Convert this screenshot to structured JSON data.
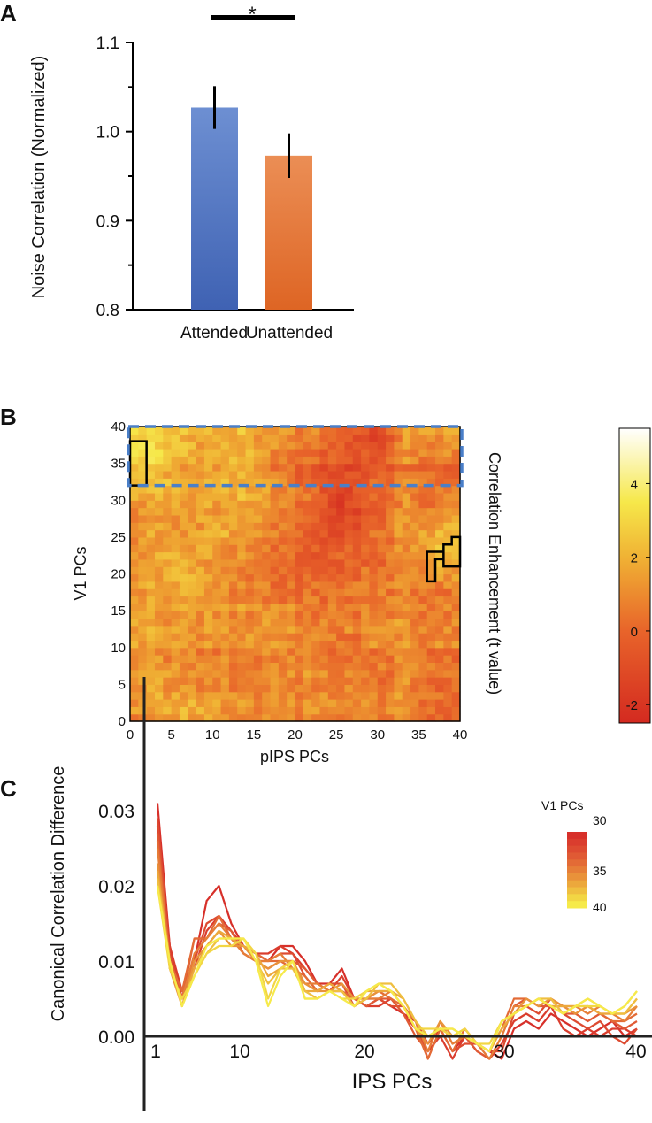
{
  "panel_labels": [
    "A",
    "B",
    "C"
  ],
  "chart_data": [
    {
      "type": "bar",
      "title": "",
      "ylabel": "Noise Correlation (Normalized)",
      "xlabel": "",
      "categories": [
        "Attended",
        "Unattended"
      ],
      "values": [
        1.027,
        0.973
      ],
      "errors": [
        0.024,
        0.025
      ],
      "colors": [
        "#5b7cc4",
        "#e5773a"
      ],
      "ylim": [
        0.8,
        1.1
      ],
      "yticks": [
        "0.8",
        "0.9",
        "1.0",
        "1.1"
      ],
      "significance": {
        "between": [
          "Attended",
          "Unattended"
        ],
        "label": "*"
      }
    },
    {
      "type": "heatmap",
      "xlabel": "pIPS PCs",
      "ylabel": "V1 PCs",
      "xticks": [
        "0",
        "5",
        "10",
        "15",
        "20",
        "25",
        "30",
        "35",
        "40"
      ],
      "yticks": [
        "0",
        "5",
        "10",
        "15",
        "20",
        "25",
        "30",
        "35",
        "40"
      ],
      "xlim": [
        0,
        40
      ],
      "ylim": [
        0,
        40
      ],
      "colorbar": {
        "label": "Correlation Enhancement (t value)",
        "ticks": [
          "4",
          "2",
          "0",
          "-2"
        ],
        "range": [
          -2.5,
          5.5
        ]
      },
      "block_size": 4,
      "coarse_t_values_bottom_to_top": [
        [
          1.5,
          2,
          1.5,
          1,
          1,
          1,
          1,
          1,
          1,
          0
        ],
        [
          1.5,
          1,
          1,
          0.5,
          1,
          1,
          1,
          0.5,
          1,
          0
        ],
        [
          1.5,
          1,
          1,
          1.5,
          1,
          1,
          0.5,
          1,
          1,
          0.5
        ],
        [
          1.5,
          1,
          1,
          1,
          1,
          0.5,
          0.5,
          1,
          1,
          0.5
        ],
        [
          1.5,
          2,
          1.5,
          1,
          0.5,
          0.5,
          0.5,
          1,
          1,
          0.5
        ],
        [
          1.5,
          2,
          1.5,
          1,
          0,
          -0.5,
          0,
          0.5,
          1,
          2.5
        ],
        [
          1.5,
          1,
          2,
          1.5,
          1,
          -0.5,
          -1,
          0.5,
          1.5,
          2
        ],
        [
          1.5,
          1.5,
          1.5,
          2,
          1,
          0,
          -1.5,
          0,
          1,
          0.5
        ],
        [
          3,
          1.5,
          1.5,
          2,
          0.5,
          -0.5,
          -1,
          0,
          0.5,
          0
        ],
        [
          3,
          2,
          1.5,
          2,
          1,
          0.5,
          -0.5,
          -1,
          1.5,
          1
        ]
      ],
      "significant_clusters": [
        [
          [
            0,
            32
          ],
          [
            2,
            32
          ],
          [
            2,
            38
          ],
          [
            0,
            38
          ]
        ],
        [
          [
            36,
            19
          ],
          [
            37,
            19
          ],
          [
            37,
            22
          ],
          [
            38,
            22
          ],
          [
            38,
            24
          ],
          [
            39,
            24
          ],
          [
            39,
            25
          ],
          [
            40,
            25
          ],
          [
            40,
            21
          ],
          [
            38,
            21
          ],
          [
            38,
            23
          ],
          [
            36,
            23
          ]
        ]
      ],
      "highlight_region": {
        "v1_range": [
          32,
          40
        ],
        "pips_range": [
          0,
          40
        ],
        "color": "#4a7fc8"
      }
    },
    {
      "type": "line",
      "xlabel": "IPS PCs",
      "ylabel": "Canonical Correlation Difference",
      "xticks": [
        "1",
        "10",
        "20",
        "30",
        "40"
      ],
      "yticks": [
        "0.00",
        "0.01",
        "0.02",
        "0.03"
      ],
      "xlim": [
        1,
        40
      ],
      "ylim": [
        -0.011,
        0.047
      ],
      "legend": {
        "title": "V1 PCs",
        "ticks": [
          "30",
          "35",
          "40"
        ],
        "placement": "top-right"
      },
      "series": [
        {
          "name": "30",
          "color": "#d7302a",
          "values": [
            0.031,
            0.012,
            0.005,
            0.01,
            0.018,
            0.02,
            0.015,
            0.012,
            0.011,
            0.01,
            0.012,
            0.012,
            0.01,
            0.007,
            0.007,
            0.009,
            0.005,
            0.004,
            0.005,
            0.004,
            0.003,
            0.002,
            -0.001,
            0.001,
            -0.002,
            0.0,
            -0.001,
            -0.002,
            -0.003,
            0.001,
            0.002,
            0.001,
            0.003,
            0.002,
            0.001,
            0.0,
            0.001,
            0.002,
            0.0,
            0.001
          ]
        },
        {
          "name": "31",
          "color": "#da3d2e",
          "values": [
            0.028,
            0.012,
            0.006,
            0.009,
            0.014,
            0.016,
            0.014,
            0.012,
            0.011,
            0.011,
            0.012,
            0.011,
            0.009,
            0.007,
            0.006,
            0.008,
            0.005,
            0.004,
            0.004,
            0.005,
            0.003,
            0.001,
            -0.002,
            0.0,
            -0.003,
            0.0,
            -0.002,
            -0.003,
            -0.001,
            0.002,
            0.003,
            0.002,
            0.004,
            0.001,
            0.0,
            0.001,
            0.0,
            0.001,
            0.001,
            0.0
          ]
        },
        {
          "name": "32",
          "color": "#dd4b31",
          "values": [
            0.029,
            0.011,
            0.005,
            0.01,
            0.015,
            0.016,
            0.013,
            0.011,
            0.01,
            0.01,
            0.011,
            0.011,
            0.008,
            0.006,
            0.007,
            0.007,
            0.004,
            0.005,
            0.005,
            0.004,
            0.004,
            0.002,
            -0.003,
            0.001,
            -0.002,
            -0.001,
            -0.001,
            -0.002,
            -0.002,
            0.003,
            0.004,
            0.003,
            0.005,
            0.003,
            0.002,
            0.001,
            0.002,
            0.0,
            -0.001,
            0.001
          ]
        },
        {
          "name": "33",
          "color": "#e05a34",
          "values": [
            0.027,
            0.01,
            0.005,
            0.013,
            0.013,
            0.015,
            0.014,
            0.011,
            0.01,
            0.009,
            0.01,
            0.01,
            0.009,
            0.007,
            0.006,
            0.006,
            0.005,
            0.004,
            0.005,
            0.005,
            0.003,
            0.0,
            -0.002,
            0.002,
            -0.001,
            0.0,
            -0.002,
            -0.003,
            0.0,
            0.004,
            0.005,
            0.004,
            0.004,
            0.003,
            0.003,
            0.002,
            0.003,
            0.002,
            0.001,
            0.002
          ]
        },
        {
          "name": "34",
          "color": "#e36b36",
          "values": [
            0.026,
            0.01,
            0.006,
            0.013,
            0.013,
            0.016,
            0.013,
            0.012,
            0.011,
            0.01,
            0.01,
            0.009,
            0.008,
            0.006,
            0.007,
            0.006,
            0.005,
            0.005,
            0.006,
            0.005,
            0.004,
            0.001,
            -0.003,
            0.001,
            -0.002,
            0.001,
            -0.001,
            -0.002,
            0.001,
            0.005,
            0.005,
            0.004,
            0.005,
            0.004,
            0.003,
            0.004,
            0.003,
            0.002,
            0.002,
            0.003
          ]
        },
        {
          "name": "35",
          "color": "#e67e38",
          "values": [
            0.025,
            0.009,
            0.005,
            0.011,
            0.013,
            0.015,
            0.013,
            0.011,
            0.01,
            0.01,
            0.011,
            0.009,
            0.007,
            0.007,
            0.006,
            0.006,
            0.004,
            0.005,
            0.005,
            0.006,
            0.004,
            0.002,
            -0.002,
            0.002,
            -0.001,
            0.0,
            -0.001,
            -0.003,
            0.0,
            0.004,
            0.004,
            0.005,
            0.004,
            0.004,
            0.004,
            0.003,
            0.004,
            0.003,
            0.002,
            0.004
          ]
        },
        {
          "name": "36",
          "color": "#e9923a",
          "values": [
            0.023,
            0.009,
            0.004,
            0.01,
            0.012,
            0.014,
            0.012,
            0.012,
            0.01,
            0.009,
            0.01,
            0.01,
            0.007,
            0.006,
            0.006,
            0.007,
            0.005,
            0.005,
            0.006,
            0.006,
            0.004,
            0.001,
            -0.001,
            0.002,
            0.0,
            0.001,
            -0.001,
            -0.002,
            0.001,
            0.003,
            0.005,
            0.004,
            0.005,
            0.004,
            0.003,
            0.004,
            0.003,
            0.003,
            0.003,
            0.004
          ]
        },
        {
          "name": "37",
          "color": "#eca83c",
          "values": [
            0.022,
            0.01,
            0.004,
            0.009,
            0.012,
            0.014,
            0.013,
            0.012,
            0.011,
            0.008,
            0.009,
            0.01,
            0.006,
            0.006,
            0.007,
            0.006,
            0.004,
            0.006,
            0.006,
            0.006,
            0.005,
            0.002,
            0.0,
            0.001,
            0.0,
            0.0,
            -0.001,
            -0.002,
            0.001,
            0.003,
            0.004,
            0.005,
            0.004,
            0.004,
            0.004,
            0.004,
            0.003,
            0.003,
            0.003,
            0.005
          ]
        },
        {
          "name": "38",
          "color": "#efbf40",
          "values": [
            0.021,
            0.01,
            0.004,
            0.008,
            0.011,
            0.013,
            0.013,
            0.013,
            0.01,
            0.007,
            0.009,
            0.009,
            0.006,
            0.005,
            0.006,
            0.006,
            0.004,
            0.005,
            0.007,
            0.007,
            0.005,
            0.002,
            0.0,
            0.001,
            0.001,
            0.0,
            -0.001,
            -0.002,
            0.002,
            0.003,
            0.004,
            0.005,
            0.005,
            0.003,
            0.004,
            0.005,
            0.004,
            0.003,
            0.003,
            0.005
          ]
        },
        {
          "name": "39",
          "color": "#f2d644",
          "values": [
            0.02,
            0.009,
            0.005,
            0.008,
            0.011,
            0.012,
            0.012,
            0.013,
            0.011,
            0.005,
            0.009,
            0.01,
            0.005,
            0.005,
            0.006,
            0.005,
            0.005,
            0.006,
            0.007,
            0.006,
            0.004,
            0.001,
            0.001,
            0.001,
            0.0,
            0.001,
            -0.001,
            -0.001,
            0.002,
            0.003,
            0.004,
            0.005,
            0.004,
            0.003,
            0.004,
            0.004,
            0.004,
            0.003,
            0.004,
            0.006
          ]
        },
        {
          "name": "40",
          "color": "#f6ea4a",
          "values": [
            0.02,
            0.01,
            0.004,
            0.008,
            0.012,
            0.013,
            0.013,
            0.013,
            0.01,
            0.004,
            0.008,
            0.01,
            0.005,
            0.005,
            0.006,
            0.005,
            0.004,
            0.006,
            0.007,
            0.006,
            0.004,
            0.001,
            0.0,
            0.001,
            0.001,
            0.0,
            -0.001,
            -0.002,
            0.002,
            0.003,
            0.004,
            0.005,
            0.004,
            0.003,
            0.004,
            0.005,
            0.004,
            0.003,
            0.004,
            0.006
          ]
        }
      ]
    }
  ]
}
